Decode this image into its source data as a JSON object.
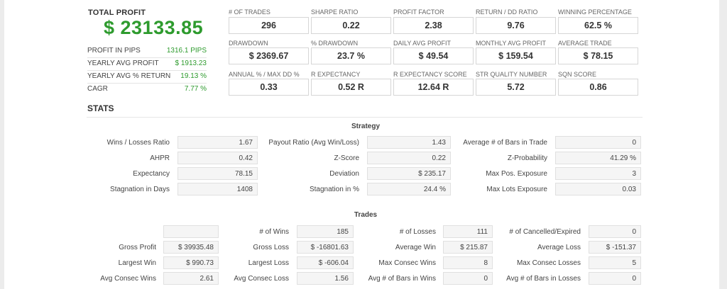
{
  "summary": {
    "total_profit_label": "TOTAL PROFIT",
    "total_profit_value": "$ 23133.85",
    "rows": [
      {
        "label": "PROFIT IN PIPS",
        "value": "1316.1 PIPS"
      },
      {
        "label": "YEARLY AVG PROFIT",
        "value": "$ 1913.23"
      },
      {
        "label": "YEARLY AVG % RETURN",
        "value": "19.13 %"
      },
      {
        "label": "CAGR",
        "value": "7.77 %"
      }
    ]
  },
  "metrics": [
    [
      {
        "label": "# OF TRADES",
        "value": "296"
      },
      {
        "label": "SHARPE RATIO",
        "value": "0.22"
      },
      {
        "label": "PROFIT FACTOR",
        "value": "2.38"
      },
      {
        "label": "RETURN / DD RATIO",
        "value": "9.76"
      },
      {
        "label": "WINNING PERCENTAGE",
        "value": "62.5 %"
      }
    ],
    [
      {
        "label": "DRAWDOWN",
        "value": "$ 2369.67"
      },
      {
        "label": "% DRAWDOWN",
        "value": "23.7 %"
      },
      {
        "label": "DAILY AVG PROFIT",
        "value": "$ 49.54"
      },
      {
        "label": "MONTHLY AVG PROFIT",
        "value": "$ 159.54"
      },
      {
        "label": "AVERAGE TRADE",
        "value": "$ 78.15"
      }
    ],
    [
      {
        "label": "ANNUAL % / MAX DD %",
        "value": "0.33"
      },
      {
        "label": "R EXPECTANCY",
        "value": "0.52 R"
      },
      {
        "label": "R EXPECTANCY SCORE",
        "value": "12.64 R"
      },
      {
        "label": "STR QUALITY NUMBER",
        "value": "5.72"
      },
      {
        "label": "SQN SCORE",
        "value": "0.86"
      }
    ]
  ],
  "stats_title": "STATS",
  "strategy": {
    "title": "Strategy",
    "rows": [
      [
        {
          "label": "Wins / Losses Ratio",
          "value": "1.67"
        },
        {
          "label": "Payout Ratio (Avg Win/Loss)",
          "value": "1.43"
        },
        {
          "label": "Average # of Bars in Trade",
          "value": "0"
        }
      ],
      [
        {
          "label": "AHPR",
          "value": "0.42"
        },
        {
          "label": "Z-Score",
          "value": "0.22"
        },
        {
          "label": "Z-Probability",
          "value": "41.29 %"
        }
      ],
      [
        {
          "label": "Expectancy",
          "value": "78.15"
        },
        {
          "label": "Deviation",
          "value": "$ 235.17"
        },
        {
          "label": "Max Pos. Exposure",
          "value": "3"
        }
      ],
      [
        {
          "label": "Stagnation in Days",
          "value": "1408"
        },
        {
          "label": "Stagnation in %",
          "value": "24.4 %"
        },
        {
          "label": "Max Lots Exposure",
          "value": "0.03"
        }
      ]
    ]
  },
  "trades": {
    "title": "Trades",
    "rows": [
      [
        {
          "label": "",
          "value": ""
        },
        {
          "label": "# of Wins",
          "value": "185"
        },
        {
          "label": "# of Losses",
          "value": "111"
        },
        {
          "label": "# of Cancelled/Expired",
          "value": "0"
        }
      ],
      [
        {
          "label": "Gross Profit",
          "value": "$ 39935.48"
        },
        {
          "label": "Gross Loss",
          "value": "$ -16801.63"
        },
        {
          "label": "Average Win",
          "value": "$ 215.87"
        },
        {
          "label": "Average Loss",
          "value": "$ -151.37"
        }
      ],
      [
        {
          "label": "Largest Win",
          "value": "$ 990.73"
        },
        {
          "label": "Largest Loss",
          "value": "$ -606.04"
        },
        {
          "label": "Max Consec Wins",
          "value": "8"
        },
        {
          "label": "Max Consec Losses",
          "value": "5"
        }
      ],
      [
        {
          "label": "Avg Consec Wins",
          "value": "2.61"
        },
        {
          "label": "Avg Consec Loss",
          "value": "1.56"
        },
        {
          "label": "Avg # of Bars in Wins",
          "value": "0"
        },
        {
          "label": "Avg # of Bars in Losses",
          "value": "0"
        }
      ]
    ]
  },
  "colors": {
    "profit_green": "#2e9b2e",
    "text": "#333333",
    "box_border": "#d6d6d6"
  }
}
